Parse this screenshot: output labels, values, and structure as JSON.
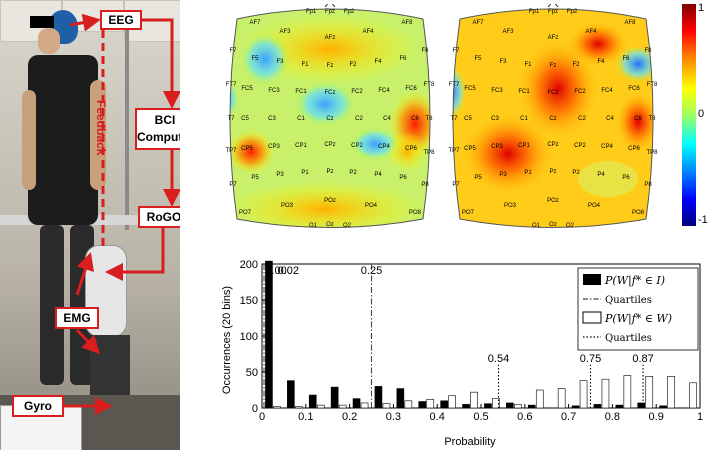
{
  "photo": {
    "labels": {
      "eeg": "EEG",
      "bci": "BCI Computer",
      "rogo": "RoGO",
      "emg": "EMG",
      "gyro": "Gyro",
      "feedback": "Feedback"
    }
  },
  "scalp_maps": {
    "electrodes": [
      "Fp1",
      "Fpz",
      "Fp2",
      "AF7",
      "AF3",
      "AFz",
      "AF4",
      "AF8",
      "F7",
      "F5",
      "F3",
      "F1",
      "Fz",
      "F2",
      "F4",
      "F6",
      "F8",
      "FT7",
      "FC5",
      "FC3",
      "FC1",
      "FCz",
      "FC2",
      "FC4",
      "FC6",
      "FT8",
      "T7",
      "C5",
      "C3",
      "C1",
      "Cz",
      "C2",
      "C4",
      "C6",
      "T8",
      "TP7",
      "CP5",
      "CP3",
      "CP1",
      "CPz",
      "CP2",
      "CP4",
      "CP6",
      "TP8",
      "P7",
      "P5",
      "P3",
      "P1",
      "Pz",
      "P2",
      "P4",
      "P6",
      "P8",
      "PO7",
      "PO3",
      "POz",
      "PO4",
      "PO8",
      "O1",
      "Oz",
      "O2"
    ],
    "colorbar": {
      "max_label": "1",
      "mid_label": "0",
      "min_label": "-1",
      "colors": [
        "#7f0000",
        "#ff0000",
        "#ff8c00",
        "#ffff00",
        "#9fff60",
        "#00ffff",
        "#0080ff",
        "#0000ff",
        "#00007f"
      ]
    }
  },
  "chart_data": {
    "type": "bar",
    "xlabel": "Probability",
    "ylabel": "Occurrences (20 bins)",
    "xlim": [
      0,
      1
    ],
    "ylim": [
      0,
      200
    ],
    "xticks": [
      "0",
      "0.1",
      "0.2",
      "0.3",
      "0.4",
      "0.5",
      "0.6",
      "0.7",
      "0.8",
      "0.9",
      "1"
    ],
    "yticks": [
      "0",
      "50",
      "100",
      "150",
      "200"
    ],
    "bin_centers": [
      0.025,
      0.075,
      0.125,
      0.175,
      0.225,
      0.275,
      0.325,
      0.375,
      0.425,
      0.475,
      0.525,
      0.575,
      0.625,
      0.675,
      0.725,
      0.775,
      0.825,
      0.875,
      0.925,
      0.975
    ],
    "series": [
      {
        "name": "P(W|f* ∈ I)",
        "fill": "#000000",
        "values": [
          205,
          38,
          18,
          29,
          13,
          30,
          27,
          9,
          10,
          5,
          6,
          7,
          4,
          0,
          3,
          5,
          4,
          7,
          3,
          0
        ]
      },
      {
        "name": "P(W|f* ∈ W)",
        "fill": "#ffffff",
        "values": [
          2,
          2,
          4,
          4,
          7,
          6,
          10,
          12,
          17,
          22,
          13,
          5,
          25,
          27,
          38,
          40,
          45,
          44,
          44,
          35
        ]
      }
    ],
    "quartile_lines": [
      {
        "series": "I",
        "style": "dashdot",
        "values": [
          0.0,
          0.25
        ],
        "labels": [
          "0.00",
          "0.25"
        ]
      },
      {
        "series": "W",
        "style": "dotted",
        "values": [
          0.54,
          0.75,
          0.87
        ],
        "labels": [
          "0.54",
          "0.75",
          "0.87"
        ]
      }
    ],
    "extra_annotations": [
      "0.02"
    ],
    "legend": {
      "position": "top-right",
      "entries": [
        "P(W|f* ∈ I)",
        "Quartiles",
        "P(W|f* ∈ W)",
        "Quartiles"
      ]
    }
  }
}
